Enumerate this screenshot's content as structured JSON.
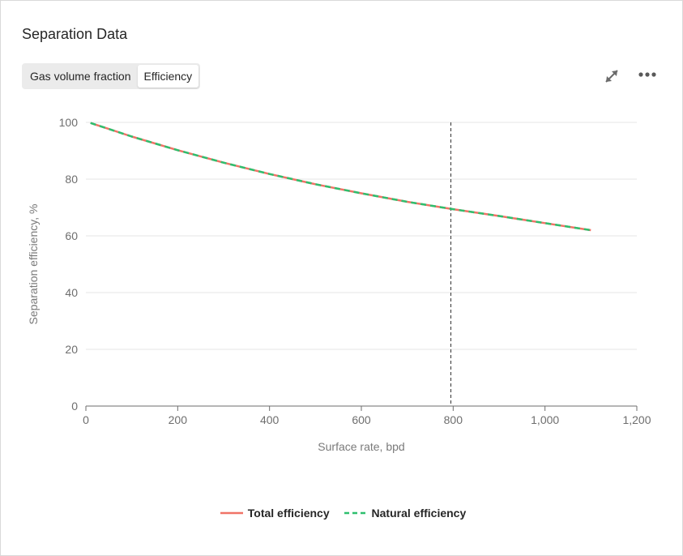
{
  "card": {
    "title": "Separation Data",
    "tabs": [
      {
        "label": "Gas volume fraction",
        "active": false
      },
      {
        "label": "Efficiency",
        "active": true
      }
    ],
    "expand_icon": "expand-arrows-icon",
    "more_icon": "more-horizontal-icon"
  },
  "chart_data": {
    "type": "line",
    "xlabel": "Surface rate, bpd",
    "ylabel": "Separation efficiency, %",
    "xlim": [
      0,
      1200
    ],
    "ylim": [
      0,
      100
    ],
    "x_ticks": [
      0,
      200,
      400,
      600,
      800,
      1000,
      1200
    ],
    "x_tick_labels": [
      "0",
      "200",
      "400",
      "600",
      "800",
      "1,000",
      "1,200"
    ],
    "y_ticks": [
      0,
      20,
      40,
      60,
      80,
      100
    ],
    "y_tick_labels": [
      "0",
      "20",
      "40",
      "60",
      "80",
      "100"
    ],
    "grid": "horizontal",
    "reference_line_x": 795,
    "legend_position": "bottom",
    "series": [
      {
        "name": "Total efficiency",
        "color": "#f07367",
        "style": "solid",
        "x": [
          10,
          100,
          200,
          300,
          400,
          500,
          600,
          700,
          800,
          900,
          1000,
          1100
        ],
        "y": [
          99.8,
          95.0,
          90.2,
          85.8,
          81.8,
          78.2,
          75.0,
          72.0,
          69.4,
          67.0,
          64.5,
          62.0
        ]
      },
      {
        "name": "Natural efficiency",
        "color": "#2ebf6e",
        "style": "dashed",
        "x": [
          10,
          100,
          200,
          300,
          400,
          500,
          600,
          700,
          800,
          900,
          1000,
          1100
        ],
        "y": [
          99.8,
          95.0,
          90.2,
          85.8,
          81.8,
          78.2,
          75.0,
          72.0,
          69.4,
          67.0,
          64.5,
          62.0
        ]
      }
    ]
  }
}
